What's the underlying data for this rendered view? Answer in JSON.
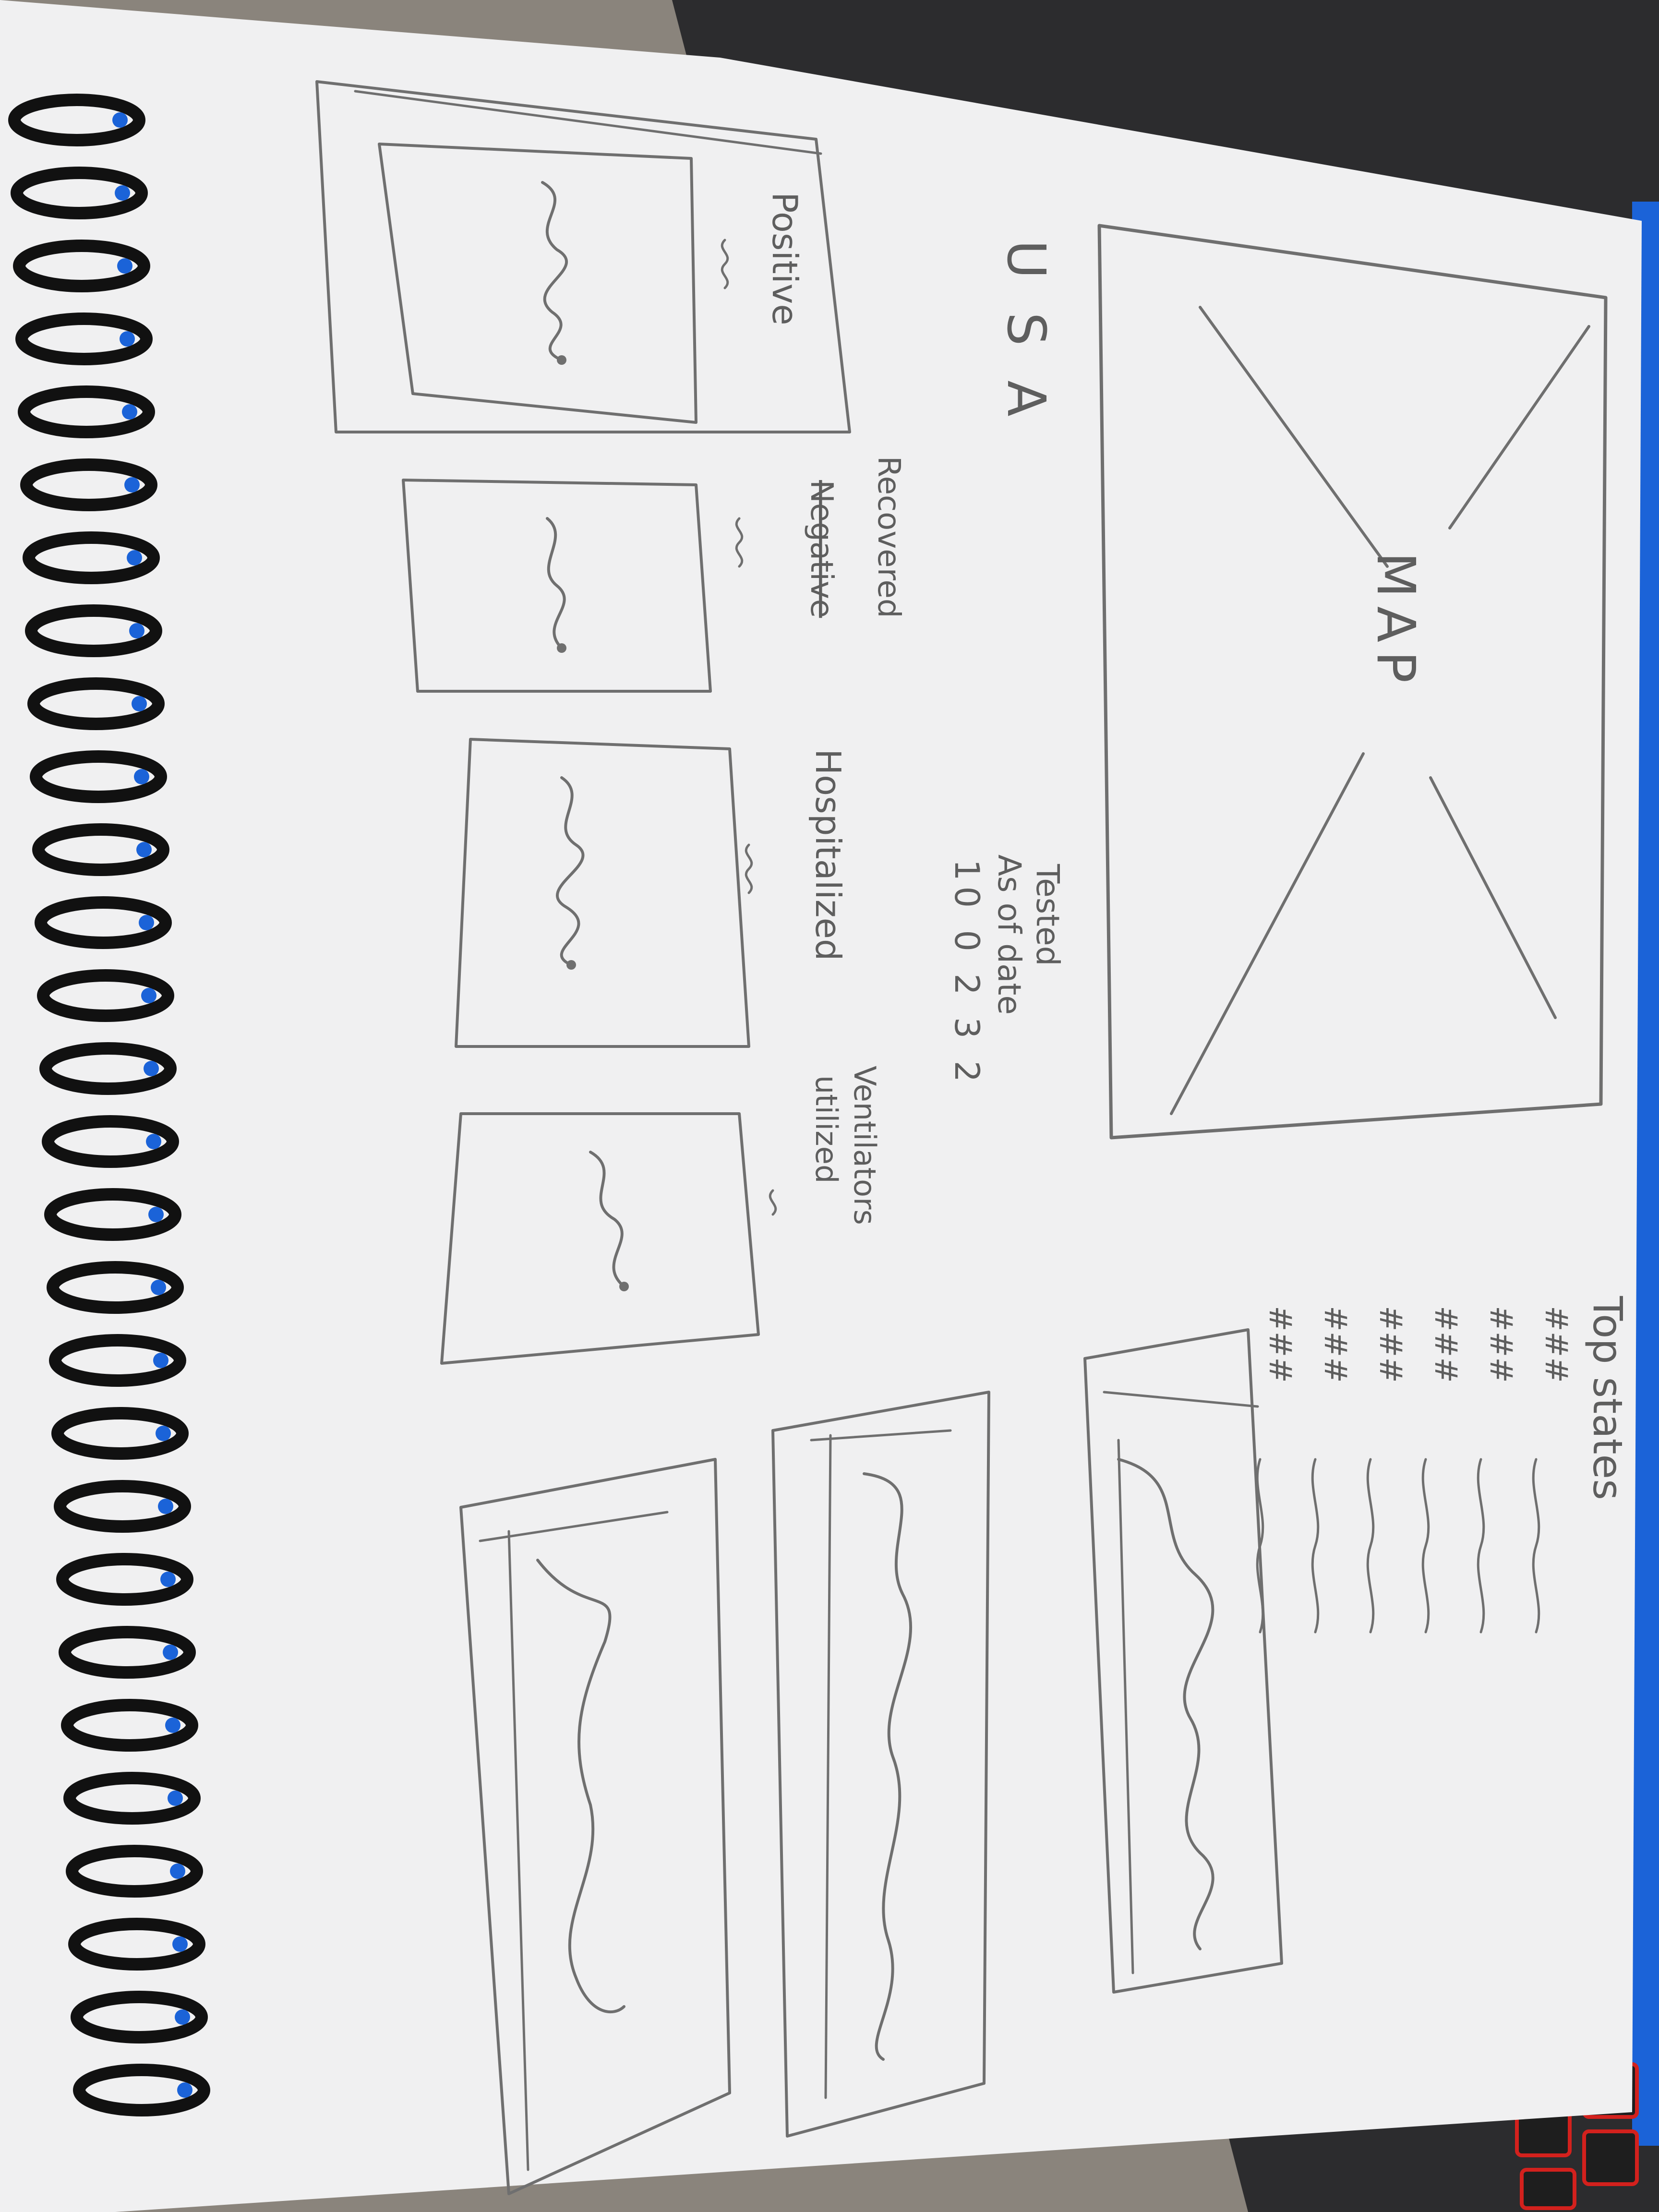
{
  "colors": {
    "paper": "#f0f0f1",
    "pencil": "#6f6f6f",
    "desk": "#2c2c2e",
    "floor": "#8a847c",
    "spiral": "#111111",
    "laptop_accent": "#1b63d8",
    "keyboard_glow": "#d3211d"
  },
  "icons": {
    "spiral_binding": "spiral-coil",
    "map_placeholder": "x-box"
  },
  "sketch": {
    "title": "USA",
    "map_label": "MAP",
    "tested": {
      "label": "Tested",
      "as_of": "As of date",
      "value": "10 0 2 3 2"
    },
    "metrics": [
      {
        "label": "Positive"
      },
      {
        "label": "Recovered",
        "struck": "Negative"
      },
      {
        "label": "Hospitalized"
      },
      {
        "label": "Ventilators",
        "label2": "utilized"
      }
    ],
    "top_states": {
      "label": "Top states",
      "rows": [
        "###",
        "###",
        "###",
        "###",
        "###",
        "###"
      ]
    }
  }
}
